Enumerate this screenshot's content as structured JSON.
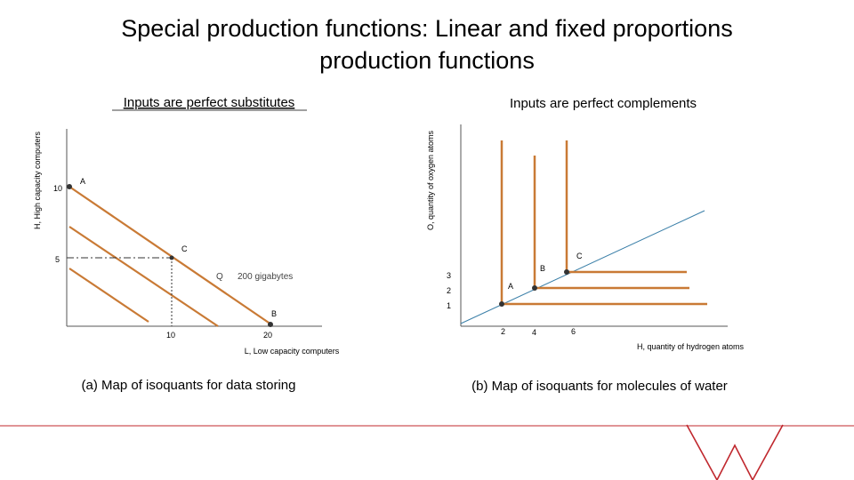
{
  "slide": {
    "title_line1": "Special production functions: Linear and fixed proportions",
    "title_line2": "production functions"
  },
  "left_panel": {
    "subtitle": "Inputs are perfect substitutes",
    "y_axis_label": "H, High capacity computers",
    "x_axis_label": "L, Low capacity computers",
    "caption": "(a)  Map of isoquants for data storing",
    "tick_labels": {
      "y10": "10",
      "y5": "5",
      "x10": "10",
      "x20": "20"
    },
    "point_labels": {
      "a": "A",
      "c": "C",
      "b": "B"
    },
    "isoquant_label": {
      "prefix": "Q",
      "value": "200 gigabytes"
    },
    "colors": {
      "isoquant": "#c97a35",
      "axis": "#555555",
      "guide": "#333333"
    }
  },
  "right_panel": {
    "subtitle": "Inputs are perfect complements",
    "y_axis_label": "O, quantity of oxygen atoms",
    "x_axis_label": "H, quantity of hydrogen atoms",
    "caption": "(b)  Map of isoquants for molecules of water",
    "tick_labels": {
      "y3": "3",
      "y2": "2",
      "y1": "1",
      "x2": "2",
      "x4": "4",
      "x6": "6"
    },
    "point_labels": {
      "a": "A",
      "b": "B",
      "c": "C"
    },
    "colors": {
      "isoquant": "#c97a35",
      "ray": "#3a7fa8",
      "axis": "#555555"
    }
  },
  "footer": {
    "accent_color": "#c0282e"
  }
}
